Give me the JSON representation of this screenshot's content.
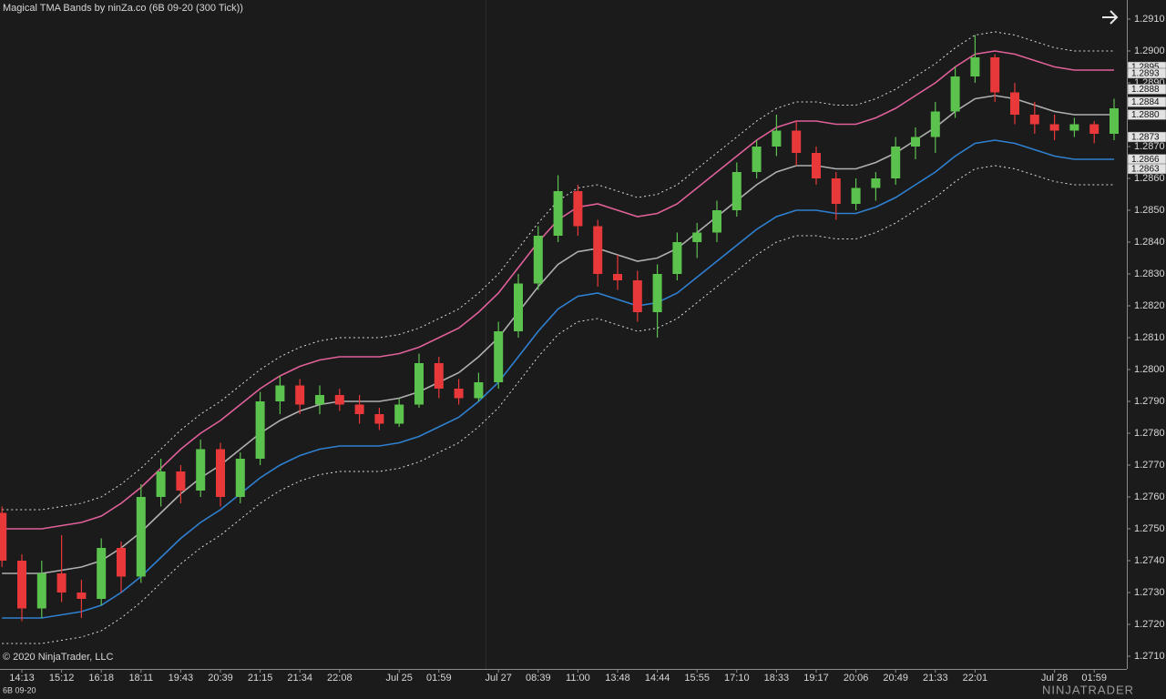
{
  "chart_data": {
    "type": "candlestick",
    "title": "Magical TMA Bands by ninZa.co (6B 09-20 (300 Tick))",
    "copyright": "© 2020 NinjaTrader, LLC",
    "instrument": "6B 09-20",
    "logo": "NINJATRADER",
    "up_color": "#5cc24e",
    "down_color": "#e8383a",
    "categories": [
      null,
      "14:13",
      null,
      "15:12",
      null,
      "16:18",
      null,
      "18:11",
      null,
      "19:43",
      null,
      "20:39",
      null,
      "21:15",
      null,
      "21:34",
      null,
      "22:08",
      null,
      null,
      "Jul 25",
      null,
      "01:59",
      null,
      null,
      "Jul 27",
      null,
      "08:39",
      null,
      "11:00",
      null,
      "13:48",
      null,
      "14:44",
      null,
      "15:55",
      null,
      "17:10",
      null,
      "18:33",
      null,
      "19:17",
      null,
      "20:06",
      null,
      "20:49",
      null,
      "21:33",
      null,
      "22:01",
      null,
      null,
      null,
      "Jul 28",
      null,
      "01:59",
      null
    ],
    "open": [
      1.2755,
      1.274,
      1.2725,
      1.2736,
      1.273,
      1.2728,
      1.2744,
      1.2735,
      1.276,
      1.2768,
      1.2762,
      1.2775,
      1.276,
      1.2772,
      1.279,
      1.2795,
      1.2789,
      1.2792,
      1.2789,
      1.2786,
      1.2783,
      1.2789,
      1.2802,
      1.2794,
      1.2791,
      1.2796,
      1.2812,
      1.2827,
      1.2842,
      1.2856,
      1.2845,
      1.283,
      1.2828,
      1.2818,
      1.283,
      1.284,
      1.2843,
      1.285,
      1.2862,
      1.287,
      1.2875,
      1.2868,
      1.286,
      1.2852,
      1.2857,
      1.286,
      1.287,
      1.2873,
      1.2881,
      1.2892,
      1.2898,
      1.2887,
      1.288,
      1.2877,
      1.2875,
      1.2877,
      1.2874
    ],
    "high": [
      1.2757,
      1.2742,
      1.274,
      1.2748,
      1.2734,
      1.2747,
      1.2746,
      1.2764,
      1.2772,
      1.277,
      1.2778,
      1.2777,
      1.2774,
      1.2793,
      1.2798,
      1.2797,
      1.2795,
      1.2794,
      1.2792,
      1.2788,
      1.2791,
      1.2805,
      1.2804,
      1.2797,
      1.2799,
      1.2815,
      1.283,
      1.2845,
      1.2861,
      1.2858,
      1.2847,
      1.2836,
      1.2831,
      1.2833,
      1.2843,
      1.2846,
      1.2853,
      1.2865,
      1.2872,
      1.288,
      1.2878,
      1.287,
      1.2862,
      1.286,
      1.2862,
      1.2873,
      1.2876,
      1.2884,
      1.2895,
      1.2905,
      1.2899,
      1.289,
      1.2884,
      1.288,
      1.2879,
      1.2878,
      1.2885
    ],
    "low": [
      1.2738,
      1.2721,
      1.2722,
      1.2727,
      1.2722,
      1.2726,
      1.273,
      1.2733,
      1.2757,
      1.2758,
      1.276,
      1.2757,
      1.2758,
      1.277,
      1.2786,
      1.2786,
      1.2786,
      1.2787,
      1.2783,
      1.2781,
      1.2782,
      1.2788,
      1.2791,
      1.2789,
      1.279,
      1.2794,
      1.281,
      1.2825,
      1.284,
      1.2842,
      1.2826,
      1.2825,
      1.2815,
      1.281,
      1.2828,
      1.2835,
      1.284,
      1.2848,
      1.286,
      1.2867,
      1.2864,
      1.2858,
      1.2847,
      1.285,
      1.2853,
      1.2858,
      1.2866,
      1.2868,
      1.2879,
      1.289,
      1.2884,
      1.2877,
      1.2874,
      1.2872,
      1.2873,
      1.2871,
      1.2872
    ],
    "close": [
      1.274,
      1.2725,
      1.2736,
      1.273,
      1.2728,
      1.2744,
      1.2735,
      1.276,
      1.2768,
      1.2762,
      1.2775,
      1.276,
      1.2772,
      1.279,
      1.2795,
      1.2789,
      1.2792,
      1.2789,
      1.2786,
      1.2783,
      1.2789,
      1.2802,
      1.2794,
      1.2791,
      1.2796,
      1.2812,
      1.2827,
      1.2842,
      1.2856,
      1.2845,
      1.283,
      1.2828,
      1.2818,
      1.283,
      1.284,
      1.2843,
      1.285,
      1.2862,
      1.287,
      1.2875,
      1.2868,
      1.286,
      1.2852,
      1.2857,
      1.286,
      1.287,
      1.2873,
      1.2881,
      1.2892,
      1.2898,
      1.2887,
      1.288,
      1.2877,
      1.2875,
      1.2877,
      1.2874,
      1.2882
    ],
    "bands": [
      {
        "color": "#d9d9d9",
        "dash": "2,3",
        "values": [
          1.2756,
          1.2756,
          1.2756,
          1.2757,
          1.2758,
          1.276,
          1.2764,
          1.2769,
          1.2775,
          1.2781,
          1.2786,
          1.279,
          1.2795,
          1.28,
          1.2804,
          1.2807,
          1.2809,
          1.281,
          1.281,
          1.281,
          1.2811,
          1.2813,
          1.2816,
          1.2819,
          1.2824,
          1.283,
          1.2838,
          1.2846,
          1.2853,
          1.2857,
          1.2858,
          1.2856,
          1.2854,
          1.2855,
          1.2858,
          1.2863,
          1.2868,
          1.2873,
          1.2878,
          1.2882,
          1.2884,
          1.2884,
          1.2883,
          1.2883,
          1.2885,
          1.2888,
          1.2892,
          1.2896,
          1.2901,
          1.2905,
          1.2906,
          1.2905,
          1.2903,
          1.2901,
          1.29,
          1.29,
          1.29
        ]
      },
      {
        "color": "#e0609a",
        "values": [
          1.275,
          1.275,
          1.275,
          1.2751,
          1.2752,
          1.2754,
          1.2758,
          1.2763,
          1.2769,
          1.2775,
          1.278,
          1.2784,
          1.2789,
          1.2794,
          1.2798,
          1.2801,
          1.2803,
          1.2804,
          1.2804,
          1.2804,
          1.2805,
          1.2807,
          1.281,
          1.2813,
          1.2818,
          1.2824,
          1.2832,
          1.284,
          1.2847,
          1.2851,
          1.2852,
          1.285,
          1.2848,
          1.2849,
          1.2852,
          1.2857,
          1.2862,
          1.2867,
          1.2872,
          1.2876,
          1.2878,
          1.2878,
          1.2877,
          1.2877,
          1.2879,
          1.2882,
          1.2886,
          1.289,
          1.2895,
          1.2899,
          1.29,
          1.2899,
          1.2897,
          1.2895,
          1.2894,
          1.2894,
          1.2894
        ]
      },
      {
        "color": "#b0b0b0",
        "values": [
          1.2736,
          1.2736,
          1.2736,
          1.2737,
          1.2738,
          1.274,
          1.2744,
          1.2749,
          1.2755,
          1.2761,
          1.2766,
          1.277,
          1.2775,
          1.278,
          1.2784,
          1.2787,
          1.2789,
          1.279,
          1.279,
          1.279,
          1.2791,
          1.2793,
          1.2796,
          1.2799,
          1.2804,
          1.281,
          1.2818,
          1.2826,
          1.2833,
          1.2837,
          1.2838,
          1.2836,
          1.2834,
          1.2835,
          1.2838,
          1.2843,
          1.2848,
          1.2853,
          1.2858,
          1.2862,
          1.2864,
          1.2864,
          1.2863,
          1.2863,
          1.2865,
          1.2868,
          1.2872,
          1.2876,
          1.2881,
          1.2885,
          1.2886,
          1.2885,
          1.2883,
          1.2881,
          1.288,
          1.288,
          1.288
        ]
      },
      {
        "color": "#2f80d0",
        "values": [
          1.2722,
          1.2722,
          1.2722,
          1.2723,
          1.2724,
          1.2726,
          1.273,
          1.2735,
          1.2741,
          1.2747,
          1.2752,
          1.2756,
          1.2761,
          1.2766,
          1.277,
          1.2773,
          1.2775,
          1.2776,
          1.2776,
          1.2776,
          1.2777,
          1.2779,
          1.2782,
          1.2785,
          1.279,
          1.2796,
          1.2804,
          1.2812,
          1.2819,
          1.2823,
          1.2824,
          1.2822,
          1.282,
          1.2821,
          1.2824,
          1.2829,
          1.2834,
          1.2839,
          1.2844,
          1.2848,
          1.285,
          1.285,
          1.2849,
          1.2849,
          1.2851,
          1.2854,
          1.2858,
          1.2862,
          1.2867,
          1.2871,
          1.2872,
          1.2871,
          1.2869,
          1.2867,
          1.2866,
          1.2866,
          1.2866
        ]
      },
      {
        "color": "#d9d9d9",
        "dash": "2,3",
        "values": [
          1.2714,
          1.2714,
          1.2714,
          1.2715,
          1.2716,
          1.2718,
          1.2722,
          1.2727,
          1.2733,
          1.2739,
          1.2744,
          1.2748,
          1.2753,
          1.2758,
          1.2762,
          1.2765,
          1.2767,
          1.2768,
          1.2768,
          1.2768,
          1.2769,
          1.2771,
          1.2774,
          1.2777,
          1.2782,
          1.2788,
          1.2796,
          1.2804,
          1.2811,
          1.2815,
          1.2816,
          1.2814,
          1.2812,
          1.2813,
          1.2816,
          1.2821,
          1.2826,
          1.2831,
          1.2836,
          1.284,
          1.2842,
          1.2842,
          1.2841,
          1.2841,
          1.2843,
          1.2846,
          1.285,
          1.2854,
          1.2859,
          1.2863,
          1.2864,
          1.2863,
          1.2861,
          1.2859,
          1.2858,
          1.2858,
          1.2858
        ]
      }
    ],
    "ylim": [
      1.2706,
      1.2916
    ],
    "yticks": [
      {
        "value": 1.271,
        "label": "1.2710"
      },
      {
        "value": 1.272,
        "label": "1.2720"
      },
      {
        "value": 1.273,
        "label": "1.2730"
      },
      {
        "value": 1.274,
        "label": "1.2740"
      },
      {
        "value": 1.275,
        "label": "1.2750"
      },
      {
        "value": 1.276,
        "label": "1.2760"
      },
      {
        "value": 1.277,
        "label": "1.2770"
      },
      {
        "value": 1.278,
        "label": "1.2780"
      },
      {
        "value": 1.279,
        "label": "1.2790"
      },
      {
        "value": 1.28,
        "label": "1.2800"
      },
      {
        "value": 1.281,
        "label": "1.2810"
      },
      {
        "value": 1.282,
        "label": "1.2820"
      },
      {
        "value": 1.283,
        "label": "1.2830"
      },
      {
        "value": 1.284,
        "label": "1.2840"
      },
      {
        "value": 1.285,
        "label": "1.2850"
      },
      {
        "value": 1.286,
        "label": "1.2860"
      },
      {
        "value": 1.287,
        "label": "1.2870"
      },
      {
        "value": 1.288,
        "label": "1.2880"
      },
      {
        "value": 1.289,
        "label": "1.2890"
      },
      {
        "value": 1.29,
        "label": "1.2900"
      },
      {
        "value": 1.291,
        "label": "1.2910"
      }
    ],
    "price_markers": [
      {
        "value": 1.2895,
        "label": "1.2895"
      },
      {
        "value": 1.2893,
        "label": "1.2893"
      },
      {
        "value": 1.2888,
        "label": "1.2888"
      },
      {
        "value": 1.2884,
        "label": "1.2884"
      },
      {
        "value": 1.288,
        "label": "1.2880"
      },
      {
        "value": 1.2873,
        "label": "1.2873"
      },
      {
        "value": 1.2866,
        "label": "1.2866"
      },
      {
        "value": 1.2863,
        "label": "1.2863"
      }
    ]
  }
}
